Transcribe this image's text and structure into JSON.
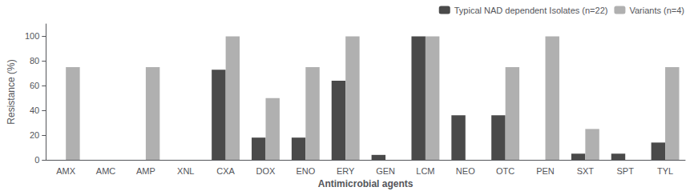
{
  "chart_data": {
    "type": "bar",
    "categories": [
      "AMX",
      "AMC",
      "AMP",
      "XNL",
      "CXA",
      "DOX",
      "ENO",
      "ERY",
      "GEN",
      "LCM",
      "NEO",
      "OTC",
      "PEN",
      "SXT",
      "SPT",
      "TYL"
    ],
    "series": [
      {
        "name": "Typical NAD dependent Isolates (n=22)",
        "color": "#4a4a4a",
        "values": [
          0,
          0,
          0,
          0,
          73,
          18,
          18,
          64,
          4,
          100,
          36,
          36,
          0,
          5,
          5,
          14
        ]
      },
      {
        "name": "Variants (n=4)",
        "color": "#b0b0b0",
        "values": [
          75,
          0,
          75,
          0,
          100,
          50,
          75,
          100,
          0,
          100,
          0,
          75,
          100,
          25,
          0,
          75
        ]
      }
    ],
    "xlabel": "Antimicrobial agents",
    "ylabel": "Resistance (%)",
    "ylim": [
      0,
      110
    ],
    "yticks": [
      0,
      20,
      40,
      60,
      80,
      100
    ],
    "grid": false,
    "legend": "upper right"
  }
}
